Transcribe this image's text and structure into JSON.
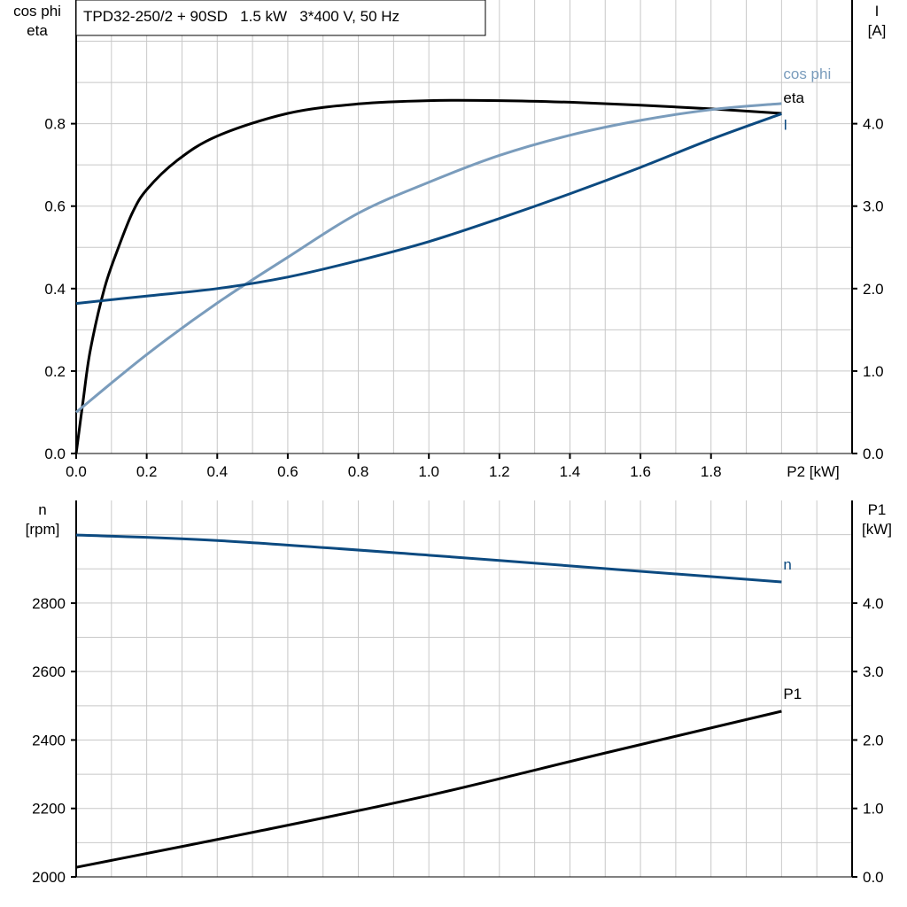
{
  "title": "TPD32-250/2 + 90SD   1.5 kW   3*400 V, 50 Hz",
  "colors": {
    "eta": "#000000",
    "cos_phi": "#7a9cbc",
    "I": "#0c4a80",
    "n": "#0c4a80",
    "P1": "#000000",
    "grid": "#c8c8c8"
  },
  "chart_data": [
    {
      "type": "line",
      "xlabel": "P2 [kW]",
      "xlim": [
        0,
        2.2
      ],
      "xticks": [
        "0.0",
        "0.2",
        "0.4",
        "0.6",
        "0.8",
        "1.0",
        "1.2",
        "1.4",
        "1.6",
        "1.8"
      ],
      "ylabel_left": [
        "cos phi",
        "eta"
      ],
      "ylim_left": [
        0,
        1.1
      ],
      "yticks_left": [
        "0.0",
        "0.2",
        "0.4",
        "0.6",
        "0.8"
      ],
      "ylabel_right": [
        "I",
        "[A]"
      ],
      "ylim_right": [
        0,
        5.5
      ],
      "yticks_right": [
        "0.0",
        "1.0",
        "2.0",
        "3.0",
        "4.0"
      ],
      "grid": true,
      "series": [
        {
          "name": "eta",
          "axis": "left",
          "color_key": "eta",
          "x": [
            0,
            0.02,
            0.04,
            0.08,
            0.12,
            0.16,
            0.2,
            0.285,
            0.4,
            0.6,
            0.8,
            1.0,
            1.2,
            1.4,
            1.6,
            1.8,
            2.0
          ],
          "y": [
            0,
            0.13,
            0.25,
            0.4,
            0.5,
            0.585,
            0.64,
            0.71,
            0.77,
            0.825,
            0.848,
            0.856,
            0.856,
            0.852,
            0.845,
            0.836,
            0.825
          ]
        },
        {
          "name": "cos phi",
          "axis": "left",
          "color_key": "cos_phi",
          "x": [
            0,
            0.2,
            0.4,
            0.6,
            0.8,
            1.0,
            1.2,
            1.4,
            1.6,
            1.8,
            2.0
          ],
          "y": [
            0.1,
            0.24,
            0.365,
            0.476,
            0.583,
            0.658,
            0.723,
            0.772,
            0.808,
            0.834,
            0.849
          ]
        },
        {
          "name": "I",
          "axis": "right",
          "color_key": "I",
          "x": [
            0,
            0.2,
            0.4,
            0.6,
            0.8,
            1.0,
            1.2,
            1.4,
            1.6,
            1.8,
            2.0
          ],
          "y": [
            1.82,
            1.91,
            2.0,
            2.14,
            2.34,
            2.57,
            2.85,
            3.15,
            3.47,
            3.81,
            4.12
          ]
        }
      ]
    },
    {
      "type": "line",
      "xlim": [
        0,
        2.2
      ],
      "ylabel_left": [
        "n",
        "[rpm]"
      ],
      "ylim_left": [
        2000,
        3100
      ],
      "yticks_left": [
        "2000",
        "2200",
        "2400",
        "2600",
        "2800"
      ],
      "ylabel_right": [
        "P1",
        "[kW]"
      ],
      "ylim_right": [
        0,
        5.5
      ],
      "yticks_right": [
        "0.0",
        "1.0",
        "2.0",
        "3.0",
        "4.0"
      ],
      "grid": true,
      "series": [
        {
          "name": "n",
          "axis": "left",
          "color_key": "n",
          "x": [
            0,
            0.4,
            1.0,
            1.6,
            2.0
          ],
          "y": [
            2999,
            2983,
            2940,
            2893,
            2862
          ]
        },
        {
          "name": "P1",
          "axis": "right",
          "color_key": "P1",
          "x": [
            0,
            0.5,
            1.0,
            1.5,
            2.0
          ],
          "y": [
            0.14,
            0.65,
            1.19,
            1.81,
            2.42
          ]
        }
      ]
    }
  ]
}
